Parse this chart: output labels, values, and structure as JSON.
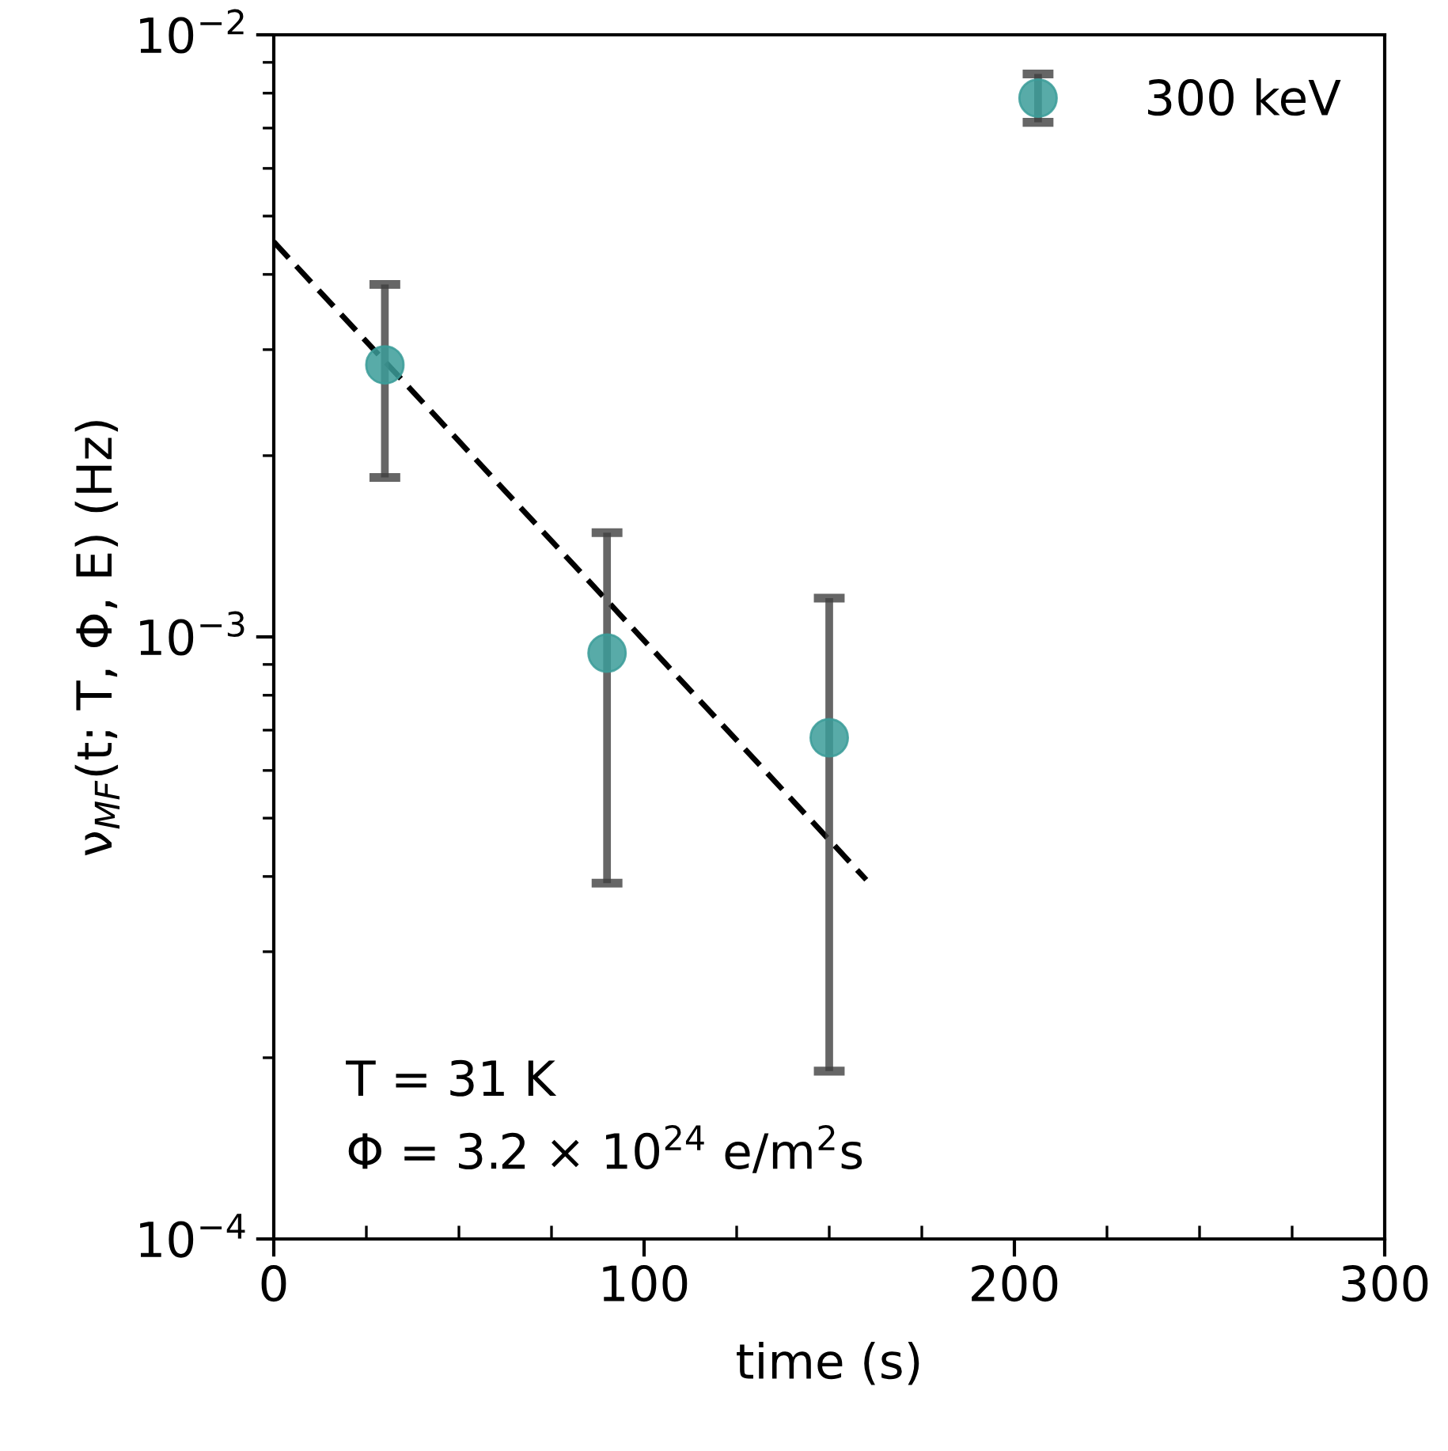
{
  "chart_data": {
    "type": "scatter",
    "xlabel": "time (s)",
    "ylabel": "ν$_{MF}$(t; T, Φ, E) (Hz)",
    "log": "y",
    "xlim": [
      0,
      300
    ],
    "xticks": [
      0,
      100,
      200,
      300
    ],
    "ylim": [
      0.0001,
      0.01
    ],
    "yticks": [
      {
        "value": 0.0001,
        "label": "10$^{−4}$"
      },
      {
        "value": 0.001,
        "label": "10$^{−3}$"
      },
      {
        "value": 0.01,
        "label": "10$^{−2}$"
      }
    ],
    "grid": false,
    "legend": "top right",
    "marker": "circle",
    "series": [
      {
        "name": "300 keV",
        "color": "#3b9c99",
        "x": [
          30,
          90,
          150
        ],
        "values": [
          0.00283,
          0.00094,
          0.00068
        ],
        "errors": [
          [
            0.00184,
            0.00385
          ],
          [
            0.00039,
            0.00149
          ],
          [
            0.00019,
            0.00116
          ]
        ]
      },
      {
        "type": "line",
        "color": "#000000",
        "line_style": "dashed",
        "marker": "none",
        "x": [
          0,
          160
        ],
        "values": [
          0.00453,
          0.000395
        ]
      }
    ],
    "annotations": [
      "T = 31 K",
      "Φ = 3.2 × 10$^{24}$ e/m$^{2}$s"
    ]
  }
}
